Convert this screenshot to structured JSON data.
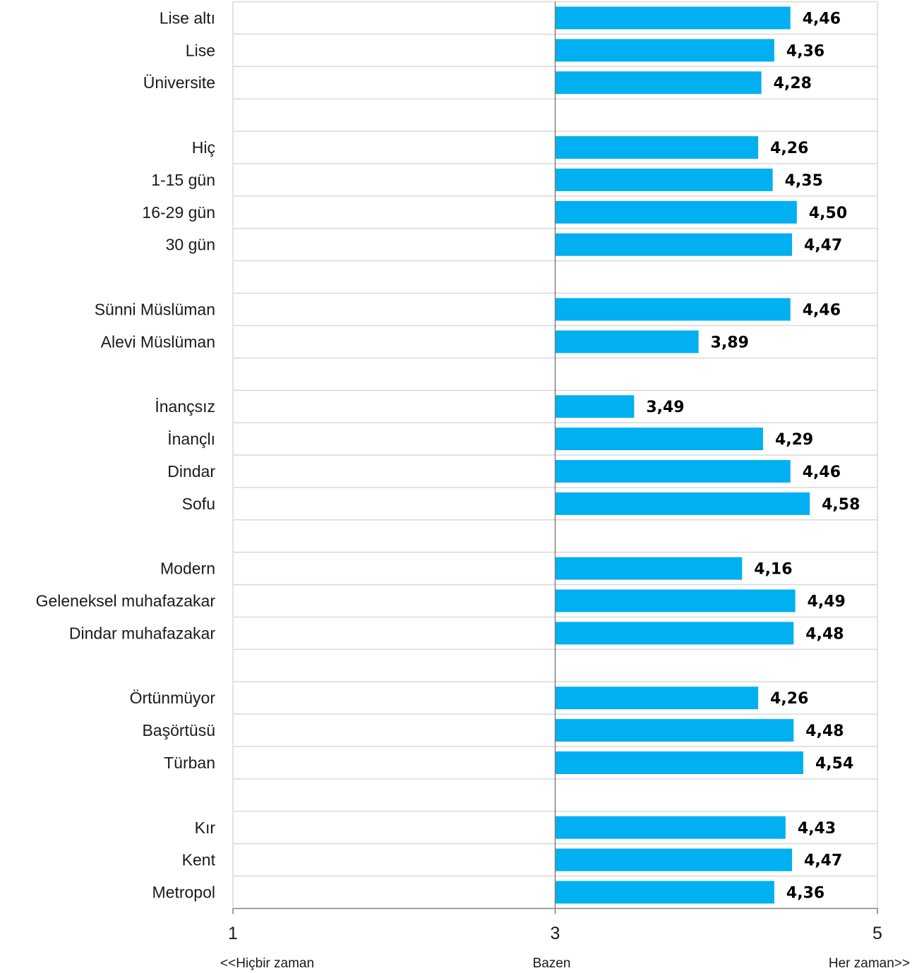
{
  "chart_data": {
    "type": "bar",
    "orientation": "horizontal",
    "categories": [
      "Lise altı",
      "Lise",
      "Üniversite",
      "",
      "Hiç",
      "1-15 gün",
      "16-29 gün",
      "30 gün",
      "",
      "Sünni Müslüman",
      "Alevi Müslüman",
      "",
      "İnançsız",
      "İnançlı",
      "Dindar",
      "Sofu",
      "",
      "Modern",
      "Geleneksel muhafazakar",
      "Dindar muhafazakar",
      "",
      "Örtünmüyor",
      "Başörtüsü",
      "Türban",
      "",
      "Kır",
      "Kent",
      "Metropol"
    ],
    "values": [
      4.46,
      4.36,
      4.28,
      null,
      4.26,
      4.35,
      4.5,
      4.47,
      null,
      4.46,
      3.89,
      null,
      3.49,
      4.29,
      4.46,
      4.58,
      null,
      4.16,
      4.49,
      4.48,
      null,
      4.26,
      4.48,
      4.54,
      null,
      4.43,
      4.47,
      4.36
    ],
    "value_labels": [
      "4,46",
      "4,36",
      "4,28",
      "",
      "4,26",
      "4,35",
      "4,50",
      "4,47",
      "",
      "4,46",
      "3,89",
      "",
      "3,49",
      "4,29",
      "4,46",
      "4,58",
      "",
      "4,16",
      "4,49",
      "4,48",
      "",
      "4,26",
      "4,48",
      "4,54",
      "",
      "4,43",
      "4,47",
      "4,36"
    ],
    "baseline": 3,
    "xlim": [
      1,
      5
    ],
    "xticks": [
      1,
      3,
      5
    ],
    "xtick_labels": [
      "1",
      "3",
      "5"
    ],
    "x_anchor_labels": [
      "<<Hiçbir zaman",
      "Bazen",
      "Her zaman>>"
    ],
    "grid": true,
    "colors": {
      "bar": "#00B0F0",
      "grid": "#D9D9D9",
      "axis": "#808080",
      "value_text": "#000000",
      "label_text": "#1A1A1A"
    }
  }
}
